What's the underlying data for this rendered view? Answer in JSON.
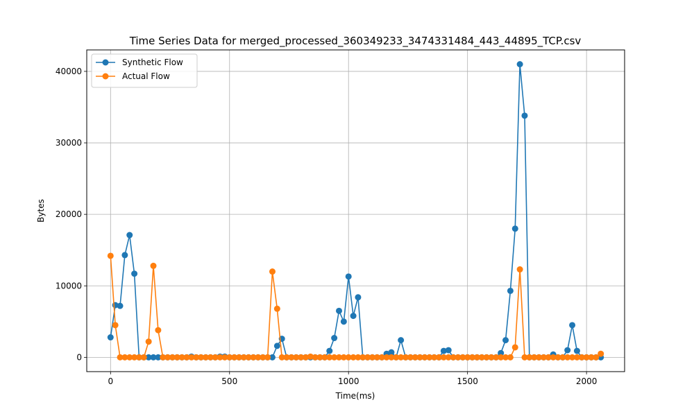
{
  "chart_data": {
    "type": "line",
    "title": "Time Series Data for merged_processed_360349233_3474331484_443_44895_TCP.csv",
    "xlabel": "Time(ms)",
    "ylabel": "Bytes",
    "xlim": [
      -100,
      2160
    ],
    "ylim": [
      -2000,
      43000
    ],
    "x_ticks": [
      0,
      500,
      1000,
      1500,
      2000
    ],
    "y_ticks": [
      0,
      10000,
      20000,
      30000,
      40000
    ],
    "grid": true,
    "legend_position": "top-left",
    "x": [
      0,
      20,
      40,
      60,
      80,
      100,
      120,
      140,
      160,
      180,
      200,
      220,
      240,
      260,
      280,
      300,
      320,
      340,
      360,
      380,
      400,
      420,
      440,
      460,
      480,
      500,
      520,
      540,
      560,
      580,
      600,
      620,
      640,
      660,
      680,
      700,
      720,
      740,
      760,
      780,
      800,
      820,
      840,
      860,
      880,
      900,
      920,
      940,
      960,
      980,
      1000,
      1020,
      1040,
      1060,
      1080,
      1100,
      1120,
      1140,
      1160,
      1180,
      1200,
      1220,
      1240,
      1260,
      1280,
      1300,
      1320,
      1340,
      1360,
      1380,
      1400,
      1420,
      1440,
      1460,
      1480,
      1500,
      1520,
      1540,
      1560,
      1580,
      1600,
      1620,
      1640,
      1660,
      1680,
      1700,
      1720,
      1740,
      1760,
      1780,
      1800,
      1820,
      1840,
      1860,
      1880,
      1900,
      1920,
      1940,
      1960,
      1980,
      2000,
      2020,
      2040,
      2060
    ],
    "series": [
      {
        "name": "Synthetic Flow",
        "color": "#1f77b4",
        "values": [
          2800,
          7300,
          7200,
          14300,
          17100,
          11700,
          0,
          0,
          0,
          0,
          0,
          0,
          0,
          0,
          0,
          0,
          0,
          100,
          0,
          0,
          0,
          0,
          0,
          100,
          100,
          0,
          0,
          0,
          0,
          0,
          0,
          0,
          0,
          0,
          0,
          1600,
          2600,
          0,
          0,
          0,
          0,
          0,
          0,
          0,
          0,
          0,
          900,
          2700,
          6500,
          5000,
          11300,
          5800,
          8400,
          0,
          0,
          0,
          0,
          0,
          500,
          700,
          0,
          2400,
          0,
          0,
          0,
          0,
          0,
          0,
          0,
          0,
          900,
          1000,
          0,
          0,
          0,
          0,
          0,
          0,
          0,
          0,
          0,
          0,
          600,
          2400,
          9300,
          18000,
          41000,
          33800,
          0,
          0,
          0,
          0,
          0,
          400,
          0,
          0,
          1000,
          4500,
          900,
          0,
          0,
          0,
          0,
          0
        ]
      },
      {
        "name": "Actual Flow",
        "color": "#ff7f0e",
        "values": [
          14200,
          4500,
          0,
          0,
          0,
          0,
          0,
          0,
          2200,
          12800,
          3800,
          0,
          0,
          0,
          0,
          0,
          0,
          0,
          0,
          0,
          0,
          0,
          0,
          0,
          0,
          0,
          0,
          0,
          0,
          0,
          0,
          0,
          0,
          0,
          12000,
          6800,
          0,
          0,
          0,
          0,
          0,
          0,
          100,
          0,
          0,
          0,
          0,
          0,
          0,
          0,
          0,
          0,
          0,
          0,
          0,
          0,
          0,
          0,
          0,
          0,
          0,
          0,
          0,
          0,
          0,
          0,
          0,
          0,
          0,
          0,
          0,
          0,
          0,
          0,
          0,
          0,
          0,
          0,
          0,
          0,
          0,
          0,
          0,
          0,
          0,
          1400,
          12300,
          0,
          0,
          0,
          0,
          0,
          0,
          0,
          0,
          0,
          0,
          0,
          0,
          0,
          0,
          0,
          0,
          500
        ]
      }
    ]
  }
}
